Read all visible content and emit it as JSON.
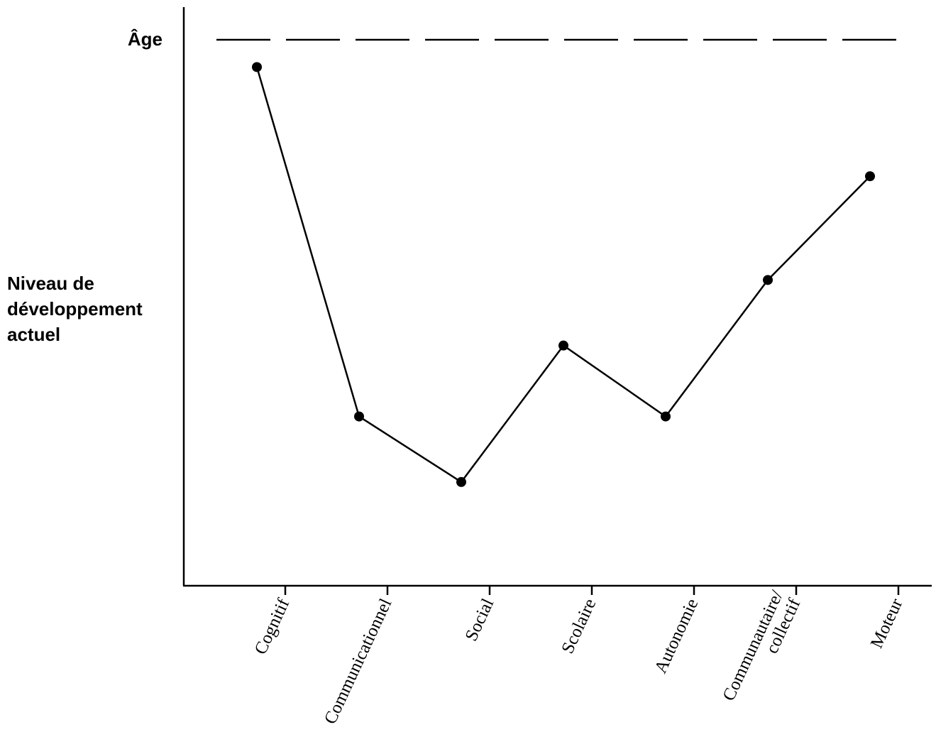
{
  "chart_data": {
    "type": "line",
    "reference_line_label": "Âge",
    "ylabel_lines": [
      "Niveau de",
      "développement",
      "actuel"
    ],
    "ylim": [
      0,
      10
    ],
    "reference_value": 10,
    "categories": [
      [
        "Cognitif"
      ],
      [
        "Communicationnel"
      ],
      [
        "Social"
      ],
      [
        "Scolaire"
      ],
      [
        "Autonomie"
      ],
      [
        "Communautaire/",
        "collectif"
      ],
      [
        "Moteur"
      ]
    ],
    "series": [
      {
        "values": [
          9.5,
          3.1,
          1.9,
          4.4,
          3.1,
          5.6,
          7.5
        ]
      }
    ],
    "colors": {
      "line": "#000000",
      "marker": "#000000"
    }
  }
}
